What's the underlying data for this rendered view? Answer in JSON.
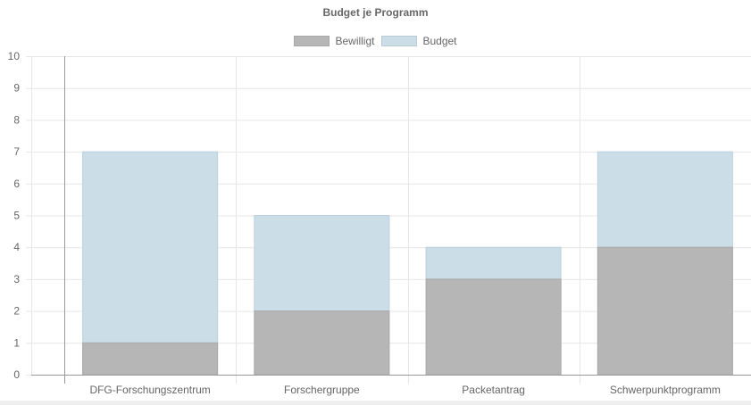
{
  "chart_data": {
    "type": "bar",
    "stacked": false,
    "overlapped": true,
    "title": "Budget je Programm",
    "categories": [
      "DFG-Forschungszentrum",
      "Forschergruppe",
      "Packetantrag",
      "Schwerpunktprogramm"
    ],
    "series": [
      {
        "name": "Bewilligt",
        "values": [
          1,
          2,
          3,
          4
        ],
        "color": "#b6b6b6"
      },
      {
        "name": "Budget",
        "values": [
          7,
          5,
          4,
          7
        ],
        "color": "#cbdde6"
      }
    ],
    "ylim": [
      0,
      10
    ],
    "yticks": [
      0,
      1,
      2,
      3,
      4,
      5,
      6,
      7,
      8,
      9,
      10
    ],
    "grid": true,
    "legend_position": "top"
  },
  "colors": {
    "gridline": "#e6e6e6",
    "axis": "#999999",
    "text": "#666666"
  }
}
